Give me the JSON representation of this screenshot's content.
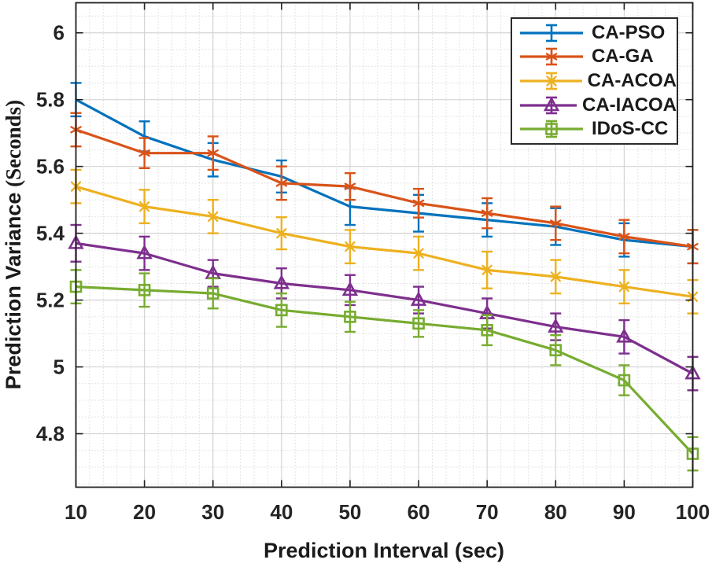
{
  "figure": {
    "title": "",
    "legend": {
      "position": "top-right",
      "border": "solid dark",
      "entries": [
        {
          "label": "CA-PSO",
          "color": "#0072BD",
          "marker": "errorbar-only"
        },
        {
          "label": "CA-GA",
          "color": "#D95319",
          "marker": "asterisk"
        },
        {
          "label": "CA-ACOA",
          "color": "#EDB120",
          "marker": "x-cross"
        },
        {
          "label": "CA-IACOA",
          "color": "#7E2F8E",
          "marker": "triangle-up-open"
        },
        {
          "label": "IDoS-CC",
          "color": "#77AC30",
          "marker": "square-open"
        }
      ]
    }
  },
  "chart_data": {
    "type": "line",
    "title": "",
    "xlabel": "Prediction Interval (sec)",
    "ylabel": "Prediction Variance (Seconds)",
    "ylabel_main": "Prediction Variance",
    "ylabel_unit": " (Seconds)",
    "xlim": [
      10,
      100
    ],
    "ylim": [
      4.64,
      6.09
    ],
    "xticks": [
      10,
      20,
      30,
      40,
      50,
      60,
      70,
      80,
      90,
      100
    ],
    "xtick_labels": [
      "10",
      "20",
      "30",
      "40",
      "50",
      "60",
      "70",
      "80",
      "90",
      "100"
    ],
    "yticks": [
      4.8,
      5.0,
      5.2,
      5.4,
      5.6,
      5.8,
      6.0
    ],
    "ytick_labels": [
      "4.8",
      "5",
      "5.2",
      "5.4",
      "5.6",
      "5.8",
      "6"
    ],
    "grid": "major solid + minor dotted",
    "minor_x_step": 2,
    "minor_y_step": 0.05,
    "error_bars": true,
    "legend_position": "top-right",
    "x": [
      10,
      20,
      30,
      40,
      50,
      60,
      70,
      80,
      90,
      100
    ],
    "series": [
      {
        "name": "CA-PSO",
        "color": "#0072BD",
        "marker": "none",
        "values": [
          5.8,
          5.69,
          5.62,
          5.57,
          5.48,
          5.46,
          5.44,
          5.42,
          5.38,
          5.36
        ],
        "err": [
          0.05,
          0.045,
          0.05,
          0.048,
          0.055,
          0.055,
          0.05,
          0.055,
          0.05,
          0.05
        ]
      },
      {
        "name": "CA-GA",
        "color": "#D95319",
        "marker": "asterisk",
        "values": [
          5.71,
          5.64,
          5.64,
          5.55,
          5.54,
          5.49,
          5.46,
          5.43,
          5.39,
          5.36
        ],
        "err": [
          0.05,
          0.045,
          0.05,
          0.05,
          0.04,
          0.043,
          0.045,
          0.05,
          0.05,
          0.05
        ]
      },
      {
        "name": "CA-ACOA",
        "color": "#EDB120",
        "marker": "x-cross",
        "values": [
          5.54,
          5.48,
          5.45,
          5.4,
          5.36,
          5.34,
          5.29,
          5.27,
          5.24,
          5.21
        ],
        "err": [
          0.05,
          0.05,
          0.05,
          0.048,
          0.05,
          0.05,
          0.055,
          0.05,
          0.05,
          0.05
        ]
      },
      {
        "name": "CA-IACOA",
        "color": "#7E2F8E",
        "marker": "triangle-up",
        "values": [
          5.37,
          5.34,
          5.28,
          5.25,
          5.23,
          5.2,
          5.16,
          5.12,
          5.09,
          4.98
        ],
        "err": [
          0.055,
          0.05,
          0.04,
          0.045,
          0.045,
          0.04,
          0.045,
          0.04,
          0.05,
          0.05
        ]
      },
      {
        "name": "IDoS-CC",
        "color": "#77AC30",
        "marker": "square",
        "values": [
          5.24,
          5.23,
          5.22,
          5.17,
          5.15,
          5.13,
          5.11,
          5.05,
          4.96,
          4.74
        ],
        "err": [
          0.05,
          0.05,
          0.045,
          0.05,
          0.045,
          0.04,
          0.045,
          0.045,
          0.045,
          0.05
        ]
      }
    ]
  }
}
